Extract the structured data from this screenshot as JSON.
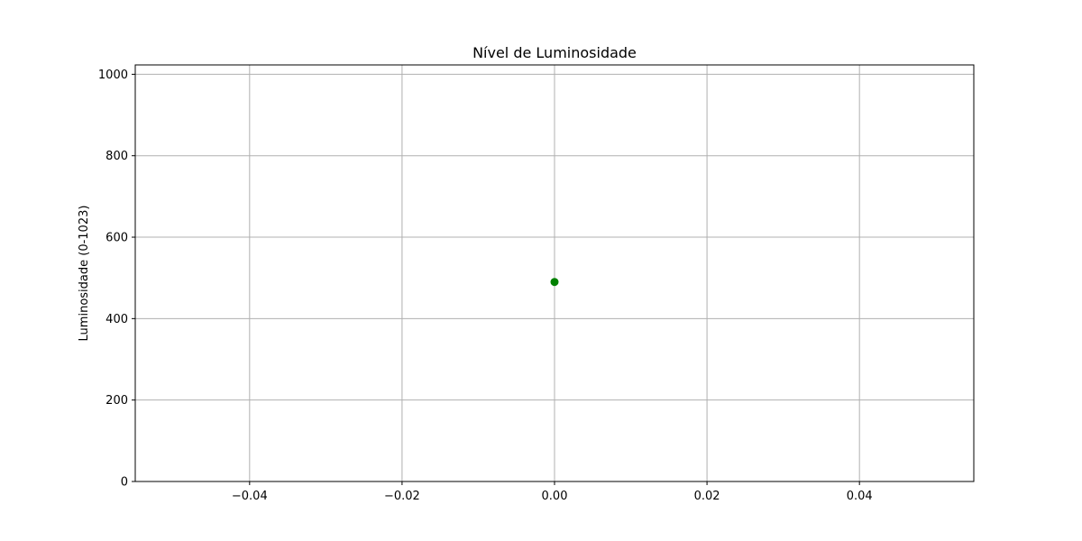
{
  "chart_data": {
    "type": "scatter",
    "title": "Nível de Luminosidade",
    "xlabel": "",
    "ylabel": "Luminosidade (0-1023)",
    "xlim": [
      -0.055,
      0.055
    ],
    "ylim": [
      0,
      1023
    ],
    "x_ticks": [
      -0.04,
      -0.02,
      0.0,
      0.02,
      0.04
    ],
    "x_tick_labels": [
      "−0.04",
      "−0.02",
      "0.00",
      "0.02",
      "0.04"
    ],
    "y_ticks": [
      0,
      200,
      400,
      600,
      800,
      1000
    ],
    "y_tick_labels": [
      "0",
      "200",
      "400",
      "600",
      "800",
      "1000"
    ],
    "grid": true,
    "series": [
      {
        "x": [
          0.0
        ],
        "y": [
          490
        ],
        "color": "#008000"
      }
    ]
  }
}
